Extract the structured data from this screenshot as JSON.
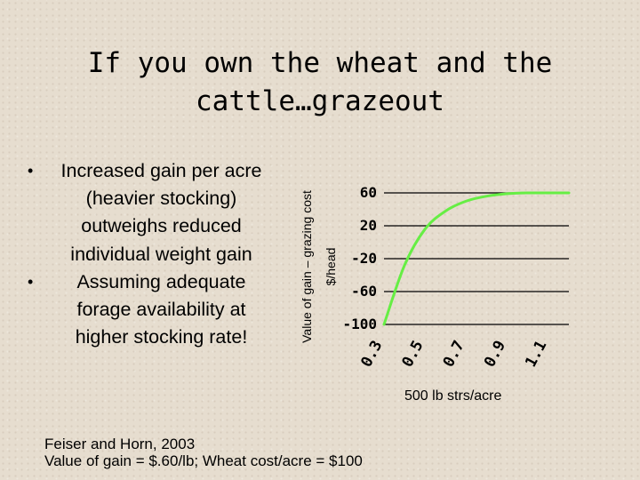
{
  "slide": {
    "title_line1": "If you own the wheat and the",
    "title_line2": "cattle…grazeout",
    "bullets": [
      "Increased gain per acre (heavier stocking) outweighs reduced individual weight gain",
      "Assuming adequate forage availability at higher stocking rate!"
    ],
    "footer_line1": "Feiser and Horn, 2003",
    "footer_line2": "Value of gain = $.60/lb; Wheat cost/acre = $100"
  },
  "chart_data": {
    "type": "line",
    "ylabel_line1": "Value of gain – grazing cost",
    "ylabel_line2": "$/head",
    "xlabel": "500 lb strs/acre",
    "y_ticks": [
      "60",
      "20",
      "-20",
      "-60",
      "-100"
    ],
    "y_tick_values": [
      60,
      20,
      -20,
      -60,
      -100
    ],
    "x_ticks": [
      "0.3",
      "0.5",
      "0.7",
      "0.9",
      "1.1"
    ],
    "x_tick_values": [
      0.3,
      0.5,
      0.7,
      0.9,
      1.1
    ],
    "xlim": [
      0.3,
      1.2
    ],
    "ylim": [
      -100,
      60
    ],
    "grid": "horizontal",
    "series": [
      {
        "color": "#66ee44",
        "x": [
          0.3,
          0.4,
          0.5,
          0.6,
          0.7,
          0.8,
          0.9,
          1.0,
          1.1,
          1.2
        ],
        "y": [
          -100,
          -28,
          16,
          38,
          50,
          56,
          59,
          60,
          60,
          60
        ]
      }
    ]
  }
}
